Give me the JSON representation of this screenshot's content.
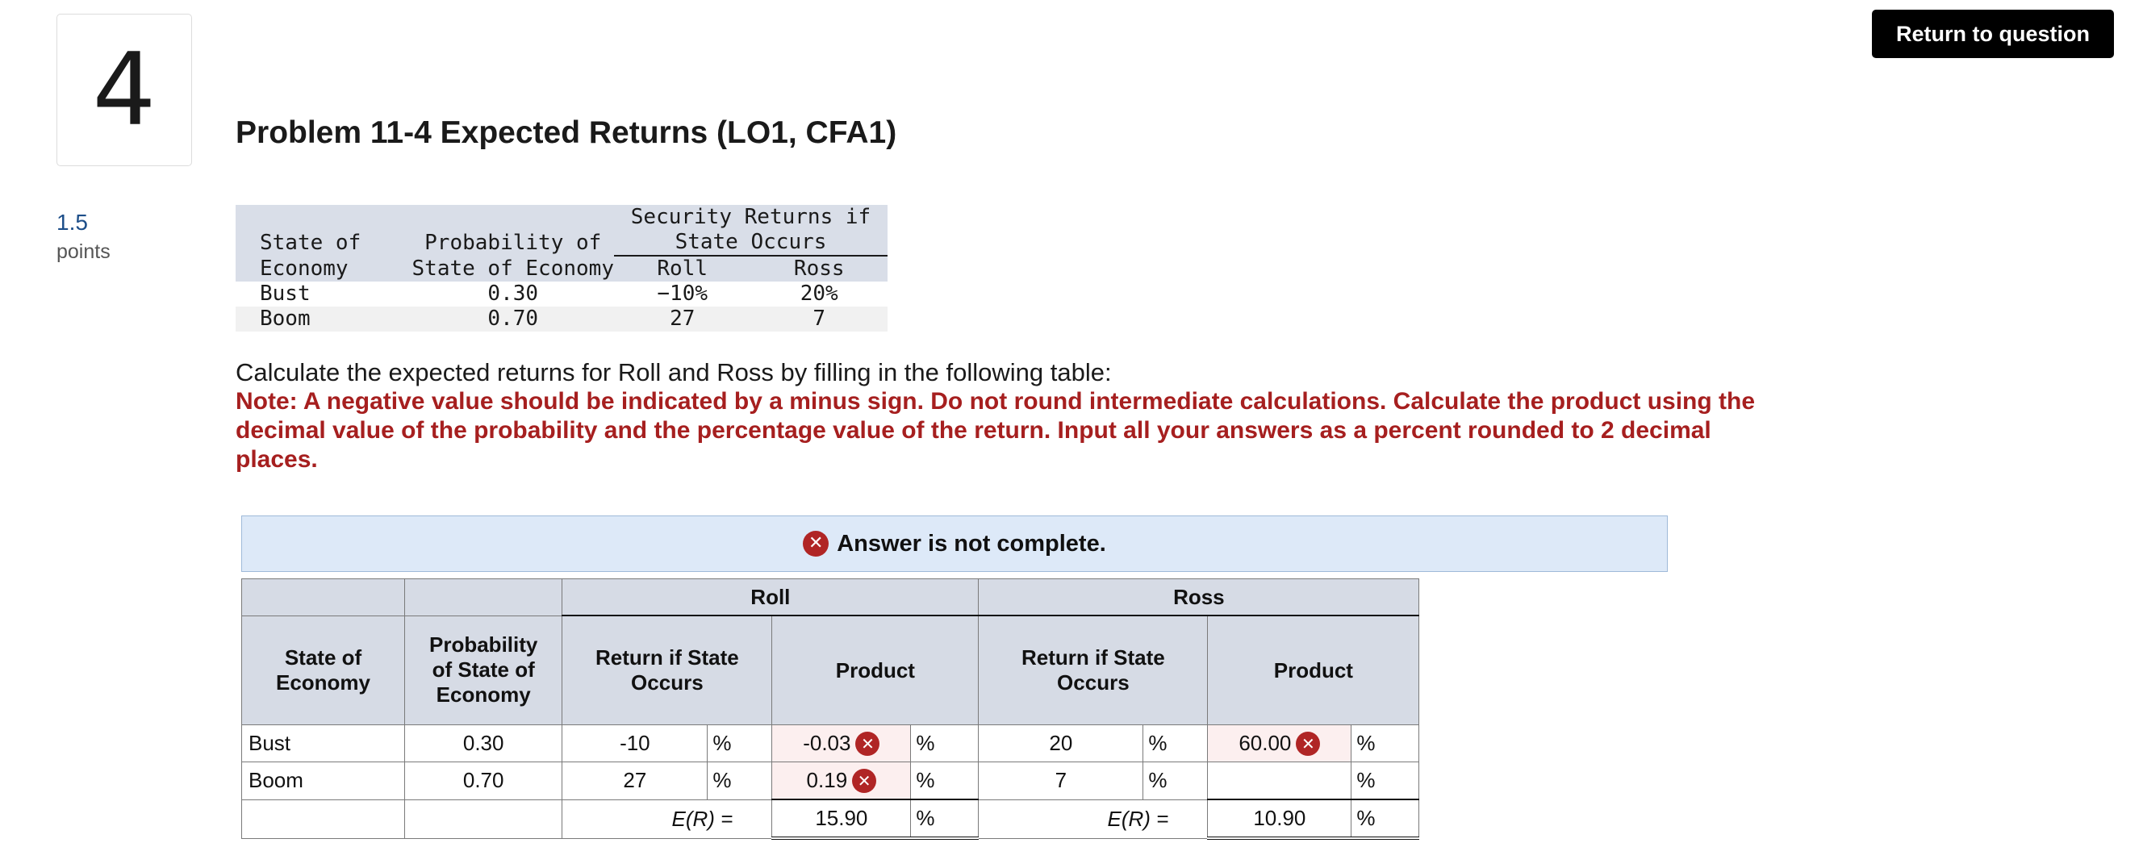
{
  "question": {
    "number": "4",
    "points_value": "1.5",
    "points_label": "points",
    "title": "Problem 11-4 Expected Returns (LO1, CFA1)",
    "return_button": "Return to question"
  },
  "data_table": {
    "header_group": "Security Returns if",
    "header_group2": "State Occurs",
    "col_state_1": "State of",
    "col_state_2": "Economy",
    "col_prob_1": "Probability of",
    "col_prob_2": "State of Economy",
    "col_roll": "Roll",
    "col_ross": "Ross",
    "rows": [
      {
        "state": "Bust",
        "prob": "0.30",
        "roll": "−10%",
        "ross": "20%"
      },
      {
        "state": "Boom",
        "prob": "0.70",
        "roll": "27",
        "ross": "7"
      }
    ]
  },
  "instruction": "Calculate the expected returns for Roll and Ross by filling in the following table:",
  "note": "Note: A negative value should be indicated by a minus sign. Do not round intermediate calculations. Calculate the product using the decimal value of the probability and the percentage value of the return. Input all your answers as a percent rounded to 2 decimal places.",
  "status_banner": "Answer is not complete.",
  "answer_table": {
    "roll_header": "Roll",
    "ross_header": "Ross",
    "col_state": "State of Economy",
    "col_prob": "Probability of State of Economy",
    "col_return": "Return if State Occurs",
    "col_product": "Product",
    "pct": "%",
    "er_label": "E(R) =",
    "rows": [
      {
        "state": "Bust",
        "prob": "0.30",
        "roll_return": "-10",
        "roll_product": "-0.03",
        "ross_return": "20",
        "ross_product": "60.00"
      },
      {
        "state": "Boom",
        "prob": "0.70",
        "roll_return": "27",
        "roll_product": "0.19",
        "ross_return": "7",
        "ross_product": ""
      }
    ],
    "roll_er": "15.90",
    "ross_er": "10.90"
  },
  "colors": {
    "error": "#b02525",
    "note": "#a61f1f",
    "banner_bg": "#dde9f8",
    "header_bg": "#d6dbe5",
    "points": "#1d4e89"
  },
  "icons": {
    "incorrect": "x-circle-icon"
  }
}
